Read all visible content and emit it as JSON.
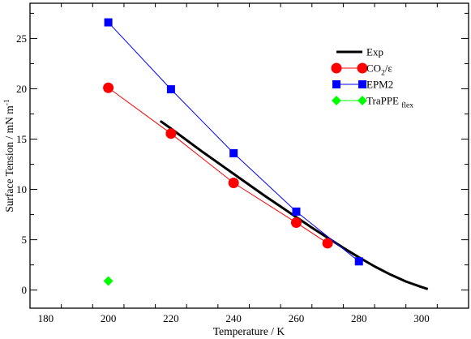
{
  "chart_data": {
    "type": "line",
    "xlabel": "Temperature  / K",
    "ylabel": {
      "main": "Surface Tension  /   mN m",
      "sup": "-1"
    },
    "xlim": [
      175,
      315
    ],
    "ylim": [
      -1.8,
      28.5
    ],
    "xticks": [
      180,
      200,
      220,
      240,
      260,
      280,
      300
    ],
    "yticks": [
      0,
      5,
      10,
      15,
      20,
      25
    ],
    "grid": false,
    "legend_position": "top-right",
    "series": [
      {
        "name": "Exp",
        "color": "#000000",
        "marker": "none",
        "line_width": 3,
        "x": [
          216.6,
          220,
          225,
          230,
          235,
          240,
          245,
          250,
          255,
          260,
          265,
          270,
          275,
          280,
          285,
          290,
          295,
          300,
          302
        ],
        "y": [
          16.8,
          16.05,
          14.9,
          13.75,
          12.65,
          11.55,
          10.45,
          9.35,
          8.3,
          7.25,
          6.2,
          5.2,
          4.2,
          3.25,
          2.35,
          1.55,
          0.85,
          0.3,
          0.1
        ]
      },
      {
        "name": "CO2/ε",
        "legend_parts": {
          "base": "CO",
          "sub": "2",
          "rest": "/ε"
        },
        "color": "#ff0000",
        "marker": "circle",
        "line_width": 1,
        "x": [
          200,
          220,
          240,
          260,
          270
        ],
        "y": [
          20.1,
          15.55,
          10.65,
          6.7,
          4.65
        ]
      },
      {
        "name": "EPM2",
        "color": "#0000ff",
        "marker": "square",
        "line_width": 1,
        "x": [
          200,
          220,
          240,
          260,
          280
        ],
        "y": [
          26.6,
          19.95,
          13.6,
          7.8,
          2.85
        ]
      },
      {
        "name": "TraPPE flex",
        "legend_parts": {
          "base": "TraPPE ",
          "sub": "flex",
          "rest": ""
        },
        "color": "#00ff00",
        "marker": "diamond",
        "line_width": 1,
        "x": [
          200
        ],
        "y": [
          0.9
        ]
      }
    ]
  }
}
